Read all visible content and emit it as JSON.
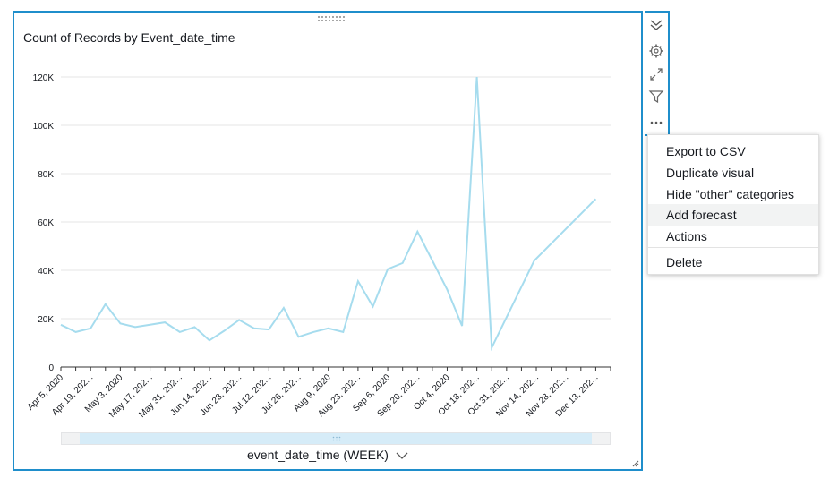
{
  "chart_data": {
    "type": "line",
    "title": "Count of Records by Event_date_time",
    "xlabel": "event_date_time (WEEK)",
    "ylabel": "",
    "ylim": [
      0,
      120000
    ],
    "yticks": [
      0,
      20000,
      40000,
      60000,
      80000,
      100000,
      120000
    ],
    "ytick_labels": [
      "0",
      "20K",
      "40K",
      "60K",
      "80K",
      "100K",
      "120K"
    ],
    "grid": true,
    "x_tick_labels": [
      "Apr 5, 2020",
      "Apr 19, 202...",
      "May 3, 2020",
      "May 17, 202...",
      "May 31, 202...",
      "Jun 14, 202...",
      "Jun 28, 202...",
      "Jul 12, 202...",
      "Jul 26, 202...",
      "Aug 9, 2020",
      "Aug 23, 202...",
      "Sep 6, 2020",
      "Sep 20, 202...",
      "Oct 4, 2020",
      "Oct 18, 202...",
      "Oct 31, 202...",
      "Nov 14, 202...",
      "Nov 28, 202...",
      "Dec 13, 202..."
    ],
    "x": [
      "2020-04-05",
      "2020-04-12",
      "2020-04-19",
      "2020-04-26",
      "2020-05-03",
      "2020-05-10",
      "2020-05-17",
      "2020-05-24",
      "2020-05-31",
      "2020-06-07",
      "2020-06-14",
      "2020-06-21",
      "2020-06-28",
      "2020-07-05",
      "2020-07-12",
      "2020-07-19",
      "2020-07-26",
      "2020-08-02",
      "2020-08-09",
      "2020-08-16",
      "2020-08-23",
      "2020-08-30",
      "2020-09-06",
      "2020-09-13",
      "2020-09-20",
      "2020-10-04",
      "2020-10-11",
      "2020-10-18",
      "2020-10-25",
      "2020-11-14",
      "2020-12-13"
    ],
    "series": [
      {
        "color": "#a6dcee",
        "values": [
          17500,
          14500,
          16000,
          26000,
          18000,
          16500,
          17500,
          18500,
          14500,
          16500,
          11000,
          15000,
          19500,
          16000,
          15500,
          24500,
          12500,
          14500,
          16000,
          14500,
          35500,
          25000,
          40500,
          43000,
          56000,
          32000,
          17000,
          120000,
          8000,
          44000,
          69500
        ]
      }
    ]
  },
  "scroll_grip": "drag-grip-icon",
  "toolbar": {
    "icons": [
      "collapse-icon",
      "gear-icon",
      "expand-icon",
      "filter-icon",
      "more-options-icon"
    ]
  },
  "menu": {
    "items": [
      "Export to CSV",
      "Duplicate visual",
      "Hide \"other\" categories",
      "Add forecast",
      "Actions",
      "Delete"
    ],
    "highlighted": "Add forecast"
  },
  "colors": {
    "accent": "#1f8ecb",
    "line": "#a6dcee",
    "grid": "#e6e6e6",
    "scroll_thumb": "#d6ecf8"
  }
}
